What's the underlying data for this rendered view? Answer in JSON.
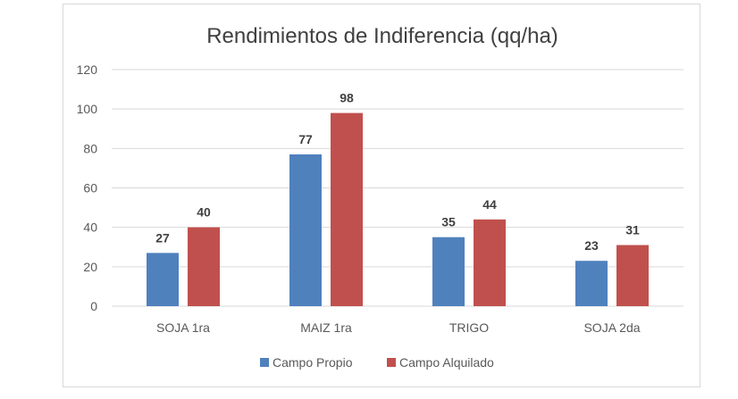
{
  "chart_data": {
    "type": "bar",
    "title": "Rendimientos de Indiferencia (qq/ha)",
    "categories": [
      "SOJA 1ra",
      "MAIZ 1ra",
      "TRIGO",
      "SOJA 2da"
    ],
    "series": [
      {
        "name": "Campo Propio",
        "values": [
          27,
          77,
          35,
          23
        ],
        "color": "#4f81bd"
      },
      {
        "name": "Campo Alquilado",
        "values": [
          40,
          98,
          44,
          31
        ],
        "color": "#c0504d"
      }
    ],
    "ylim": [
      0,
      120
    ],
    "yticks": [
      0,
      20,
      40,
      60,
      80,
      100,
      120
    ],
    "grid": true,
    "legend_position": "bottom",
    "data_labels": true
  }
}
